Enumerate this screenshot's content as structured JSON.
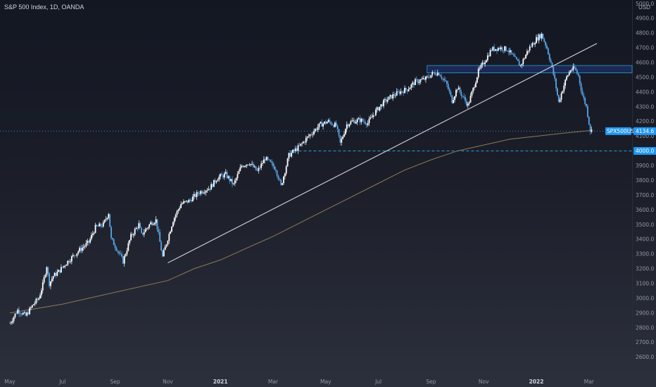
{
  "header": {
    "title": "S&P 500 Index, 1D, OANDA",
    "currency": "USD"
  },
  "price_tags": {
    "symbol_label": "SPX500USD",
    "last_price": "4134.6",
    "level_label": "4000.0"
  },
  "colors": {
    "up_candle": "#ffffff",
    "down_candle": "#5ba6e8",
    "trendline": "#d1d4dc",
    "moving_average": "#8c7a58",
    "zone_fill": "rgba(41,98,255,0.22)",
    "zone_border": "#2f9bd9",
    "tag_bg": "#2196f3"
  },
  "chart_data": {
    "type": "candlestick",
    "title": "S&P 500 Index, 1D, OANDA",
    "ylabel": "USD",
    "ylim": [
      2500,
      5000
    ],
    "y_ticks": [
      2600,
      2700,
      2800,
      2900,
      3000,
      3100,
      3200,
      3300,
      3400,
      3500,
      3600,
      3700,
      3800,
      3900,
      4000,
      4100,
      4200,
      4300,
      4400,
      4500,
      4600,
      4700,
      4800,
      4900,
      5000
    ],
    "x_ticks": [
      {
        "label": "May",
        "month": 0
      },
      {
        "label": "Jul",
        "month": 2
      },
      {
        "label": "Sep",
        "month": 4
      },
      {
        "label": "Nov",
        "month": 6
      },
      {
        "label": "2021",
        "month": 8,
        "bold": true
      },
      {
        "label": "Mar",
        "month": 10
      },
      {
        "label": "May",
        "month": 12
      },
      {
        "label": "Jul",
        "month": 14
      },
      {
        "label": "Sep",
        "month": 16
      },
      {
        "label": "Nov",
        "month": 18
      },
      {
        "label": "2022",
        "month": 20,
        "bold": true
      },
      {
        "label": "Mar",
        "month": 22
      }
    ],
    "price_path": [
      [
        0.0,
        2830
      ],
      [
        0.3,
        2920
      ],
      [
        0.6,
        2880
      ],
      [
        0.9,
        2960
      ],
      [
        1.1,
        3000
      ],
      [
        1.25,
        3090
      ],
      [
        1.4,
        3220
      ],
      [
        1.5,
        3100
      ],
      [
        1.65,
        3150
      ],
      [
        1.85,
        3180
      ],
      [
        2.2,
        3250
      ],
      [
        2.6,
        3320
      ],
      [
        3.0,
        3380
      ],
      [
        3.25,
        3480
      ],
      [
        3.55,
        3500
      ],
      [
        3.75,
        3580
      ],
      [
        3.85,
        3400
      ],
      [
        4.05,
        3340
      ],
      [
        4.3,
        3250
      ],
      [
        4.6,
        3420
      ],
      [
        4.9,
        3500
      ],
      [
        5.0,
        3430
      ],
      [
        5.35,
        3510
      ],
      [
        5.55,
        3530
      ],
      [
        5.8,
        3280
      ],
      [
        6.2,
        3530
      ],
      [
        6.5,
        3640
      ],
      [
        6.8,
        3660
      ],
      [
        7.2,
        3720
      ],
      [
        7.6,
        3750
      ],
      [
        7.9,
        3820
      ],
      [
        8.2,
        3840
      ],
      [
        8.5,
        3770
      ],
      [
        8.8,
        3900
      ],
      [
        9.1,
        3920
      ],
      [
        9.4,
        3860
      ],
      [
        9.7,
        3950
      ],
      [
        10.1,
        3880
      ],
      [
        10.3,
        3760
      ],
      [
        10.6,
        3970
      ],
      [
        11.0,
        4030
      ],
      [
        11.4,
        4110
      ],
      [
        11.8,
        4180
      ],
      [
        12.1,
        4200
      ],
      [
        12.4,
        4170
      ],
      [
        12.55,
        4050
      ],
      [
        12.8,
        4180
      ],
      [
        13.0,
        4200
      ],
      [
        13.3,
        4210
      ],
      [
        13.6,
        4190
      ],
      [
        13.9,
        4270
      ],
      [
        14.2,
        4330
      ],
      [
        14.5,
        4370
      ],
      [
        14.8,
        4400
      ],
      [
        15.1,
        4420
      ],
      [
        15.4,
        4470
      ],
      [
        15.8,
        4490
      ],
      [
        16.1,
        4530
      ],
      [
        16.3,
        4530
      ],
      [
        16.6,
        4450
      ],
      [
        16.8,
        4340
      ],
      [
        17.0,
        4430
      ],
      [
        17.2,
        4370
      ],
      [
        17.4,
        4310
      ],
      [
        17.6,
        4420
      ],
      [
        17.8,
        4540
      ],
      [
        18.0,
        4600
      ],
      [
        18.3,
        4690
      ],
      [
        18.6,
        4700
      ],
      [
        18.9,
        4690
      ],
      [
        19.2,
        4620
      ],
      [
        19.4,
        4580
      ],
      [
        19.7,
        4690
      ],
      [
        20.0,
        4760
      ],
      [
        20.2,
        4790
      ],
      [
        20.4,
        4700
      ],
      [
        20.55,
        4600
      ],
      [
        20.7,
        4480
      ],
      [
        20.85,
        4330
      ],
      [
        21.0,
        4420
      ],
      [
        21.15,
        4500
      ],
      [
        21.3,
        4550
      ],
      [
        21.45,
        4560
      ],
      [
        21.6,
        4510
      ],
      [
        21.75,
        4380
      ],
      [
        21.9,
        4300
      ],
      [
        22.05,
        4140
      ],
      [
        22.12,
        4134.6
      ]
    ],
    "moving_average": [
      [
        0.0,
        2900
      ],
      [
        2.0,
        2960
      ],
      [
        4.0,
        3040
      ],
      [
        6.0,
        3120
      ],
      [
        7.0,
        3200
      ],
      [
        8.0,
        3260
      ],
      [
        9.0,
        3340
      ],
      [
        10.0,
        3420
      ],
      [
        11.0,
        3510
      ],
      [
        12.0,
        3600
      ],
      [
        13.0,
        3690
      ],
      [
        14.0,
        3780
      ],
      [
        15.0,
        3870
      ],
      [
        16.0,
        3940
      ],
      [
        17.0,
        4000
      ],
      [
        18.0,
        4040
      ],
      [
        19.0,
        4080
      ],
      [
        20.0,
        4100
      ],
      [
        21.0,
        4120
      ],
      [
        22.12,
        4140
      ]
    ],
    "trendline": {
      "from": [
        6.0,
        3240
      ],
      "to": [
        22.3,
        4730
      ]
    },
    "resistance_zone": [
      4530,
      4580
    ],
    "level_line": 4000,
    "last_price": 4134.6
  }
}
